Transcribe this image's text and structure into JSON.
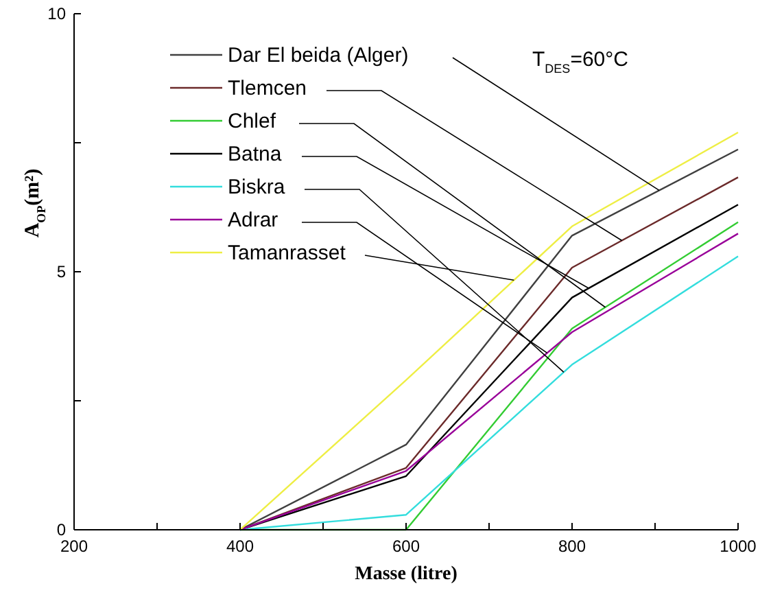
{
  "chart_data": {
    "type": "line",
    "xlabel": "Masse (litre)",
    "ylabel": "A$_{OP}$(m²)",
    "annotations": [
      "T$_{DES}$=60°C"
    ],
    "x": [
      400,
      600,
      800,
      1000
    ],
    "xlim": [
      200,
      1000
    ],
    "xticks": [
      200,
      {
        "value": 300,
        "label": null
      },
      400,
      {
        "value": 500,
        "label": null
      },
      600,
      {
        "value": 700,
        "label": null
      },
      800,
      {
        "value": 900,
        "label": null
      },
      1000
    ],
    "ylim": [
      0,
      10
    ],
    "yticks": [
      0,
      {
        "value": 2.5,
        "label": null
      },
      5,
      {
        "value": 7.5,
        "label": null
      },
      10
    ],
    "grid": false,
    "legend": "top left",
    "marker": "none",
    "line_style": "solid",
    "series": [
      {
        "name": "Dar El beida (Alger)",
        "color": "#404040",
        "values": [
          0,
          1.65,
          5.7,
          7.37
        ]
      },
      {
        "name": "Tlemcen",
        "color": "#6b2a2a",
        "values": [
          0,
          1.2,
          5.08,
          6.83
        ]
      },
      {
        "name": "Chlef",
        "color": "#33cc33",
        "values": [
          0,
          0,
          3.9,
          5.96
        ]
      },
      {
        "name": "Batna",
        "color": "#000000",
        "values": [
          0,
          1.04,
          4.5,
          6.3
        ]
      },
      {
        "name": "Biskra",
        "color": "#33dddd",
        "values": [
          0,
          0.29,
          3.2,
          5.3
        ]
      },
      {
        "name": "Adrar",
        "color": "#990099",
        "values": [
          0,
          1.14,
          3.83,
          5.74
        ]
      },
      {
        "name": "Tamanrasset",
        "color": "#eeee44",
        "values": [
          0,
          2.9,
          5.88,
          7.7
        ]
      }
    ]
  }
}
